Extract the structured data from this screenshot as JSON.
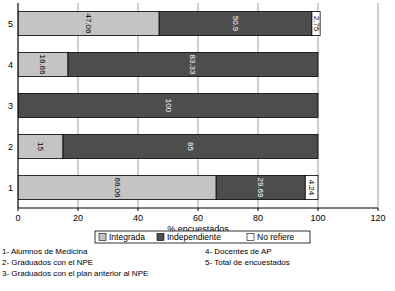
{
  "chart_data": {
    "type": "bar",
    "orientation": "horizontal",
    "stacked": true,
    "data_labels": true,
    "grid": true,
    "legend": "bottom",
    "x_label": "% encuestados",
    "categories": [
      "1",
      "2",
      "3",
      "4",
      "5"
    ],
    "series": [
      {
        "name": "Integrada",
        "color": "#c4c4c4",
        "values": [
          66.06,
          15,
          null,
          16.66,
          47.06
        ]
      },
      {
        "name": "Independiente",
        "color": "#4d4d4d",
        "values": [
          29.69,
          85,
          100,
          83.33,
          50.9
        ]
      },
      {
        "name": "No refiere",
        "color": "#ffffff",
        "values": [
          4.24,
          null,
          null,
          null,
          2.75
        ]
      }
    ],
    "xlim": [
      0,
      120
    ],
    "xticks": [
      0,
      20,
      40,
      60,
      80,
      100,
      120
    ],
    "annotations": [
      "1- Alumnos de Medicina",
      "2- Graduados con el NPE",
      "3- Graduados con el plan anterior al NPE",
      "4- Docentes de AP",
      "5- Total de encuestados"
    ]
  }
}
